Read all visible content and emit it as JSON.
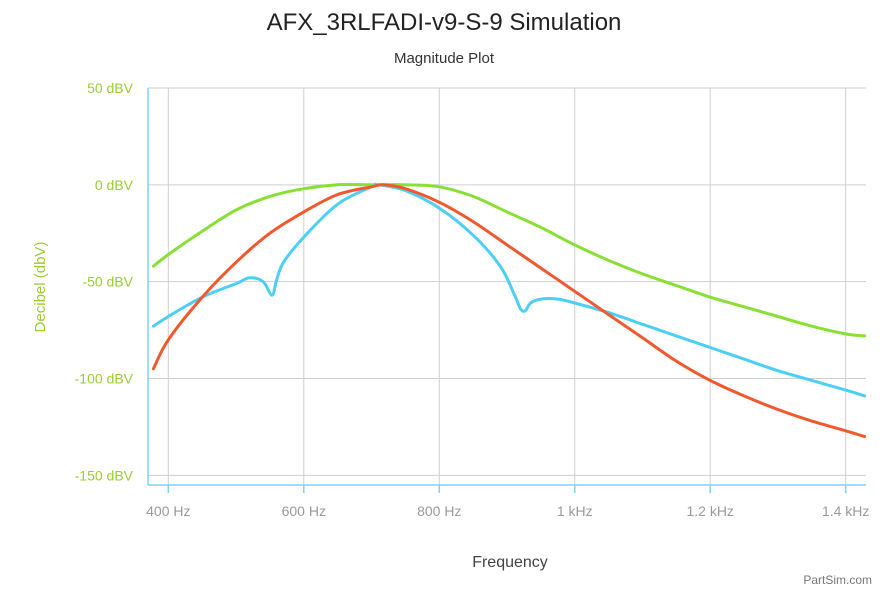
{
  "chart_data": {
    "type": "line",
    "title": "AFX_3RLFADI-v9-S-9 Simulation",
    "subtitle": "Magnitude Plot",
    "xlabel": "Frequency",
    "ylabel": "Decibel (dbV)",
    "x_unit": "Hz",
    "xlim": [
      370,
      1430
    ],
    "ylim": [
      -155,
      50
    ],
    "x_ticks": [
      {
        "value": 400,
        "label": "400 Hz"
      },
      {
        "value": 600,
        "label": "600 Hz"
      },
      {
        "value": 800,
        "label": "800 Hz"
      },
      {
        "value": 1000,
        "label": "1 kHz"
      },
      {
        "value": 1200,
        "label": "1.2 kHz"
      },
      {
        "value": 1400,
        "label": "1.4 kHz"
      }
    ],
    "y_ticks": [
      {
        "value": 50,
        "label": "50 dBV"
      },
      {
        "value": 0,
        "label": "0 dBV"
      },
      {
        "value": -50,
        "label": "-50 dBV"
      },
      {
        "value": -100,
        "label": "-100 dBV"
      },
      {
        "value": -150,
        "label": "-150 dBV"
      }
    ],
    "grid": true,
    "legend": "none",
    "series": [
      {
        "color": "#88e035",
        "points": [
          [
            378,
            -42
          ],
          [
            400,
            -36
          ],
          [
            450,
            -24
          ],
          [
            500,
            -13
          ],
          [
            550,
            -6
          ],
          [
            600,
            -2
          ],
          [
            650,
            0
          ],
          [
            700,
            0
          ],
          [
            750,
            0
          ],
          [
            800,
            -1
          ],
          [
            850,
            -6
          ],
          [
            900,
            -14
          ],
          [
            950,
            -22
          ],
          [
            1000,
            -31
          ],
          [
            1050,
            -39
          ],
          [
            1100,
            -46
          ],
          [
            1150,
            -52
          ],
          [
            1200,
            -58
          ],
          [
            1250,
            -63
          ],
          [
            1300,
            -68
          ],
          [
            1350,
            -73
          ],
          [
            1400,
            -77
          ],
          [
            1428,
            -78
          ]
        ]
      },
      {
        "color": "#4dcff5",
        "points": [
          [
            378,
            -73
          ],
          [
            400,
            -68
          ],
          [
            450,
            -58
          ],
          [
            500,
            -51
          ],
          [
            520,
            -48
          ],
          [
            540,
            -50
          ],
          [
            553,
            -57
          ],
          [
            560,
            -49
          ],
          [
            570,
            -40
          ],
          [
            600,
            -27
          ],
          [
            650,
            -10
          ],
          [
            700,
            -1
          ],
          [
            710,
            0
          ],
          [
            750,
            -3
          ],
          [
            800,
            -12
          ],
          [
            850,
            -26
          ],
          [
            890,
            -42
          ],
          [
            910,
            -56
          ],
          [
            920,
            -64
          ],
          [
            927,
            -65
          ],
          [
            935,
            -61
          ],
          [
            950,
            -59
          ],
          [
            975,
            -59
          ],
          [
            1000,
            -61
          ],
          [
            1050,
            -66
          ],
          [
            1100,
            -72
          ],
          [
            1150,
            -78
          ],
          [
            1200,
            -84
          ],
          [
            1250,
            -90
          ],
          [
            1300,
            -96
          ],
          [
            1350,
            -101
          ],
          [
            1400,
            -106
          ],
          [
            1428,
            -109
          ]
        ]
      },
      {
        "color": "#f0592e",
        "points": [
          [
            378,
            -95
          ],
          [
            400,
            -80
          ],
          [
            450,
            -58
          ],
          [
            500,
            -40
          ],
          [
            550,
            -25
          ],
          [
            600,
            -14
          ],
          [
            650,
            -5
          ],
          [
            700,
            -1
          ],
          [
            718,
            0
          ],
          [
            750,
            -2
          ],
          [
            800,
            -9
          ],
          [
            850,
            -19
          ],
          [
            900,
            -31
          ],
          [
            950,
            -43
          ],
          [
            1000,
            -55
          ],
          [
            1050,
            -67
          ],
          [
            1100,
            -79
          ],
          [
            1150,
            -91
          ],
          [
            1200,
            -101
          ],
          [
            1250,
            -109
          ],
          [
            1300,
            -116
          ],
          [
            1350,
            -122
          ],
          [
            1400,
            -127
          ],
          [
            1428,
            -130
          ]
        ]
      }
    ]
  },
  "credit": "PartSim.com"
}
